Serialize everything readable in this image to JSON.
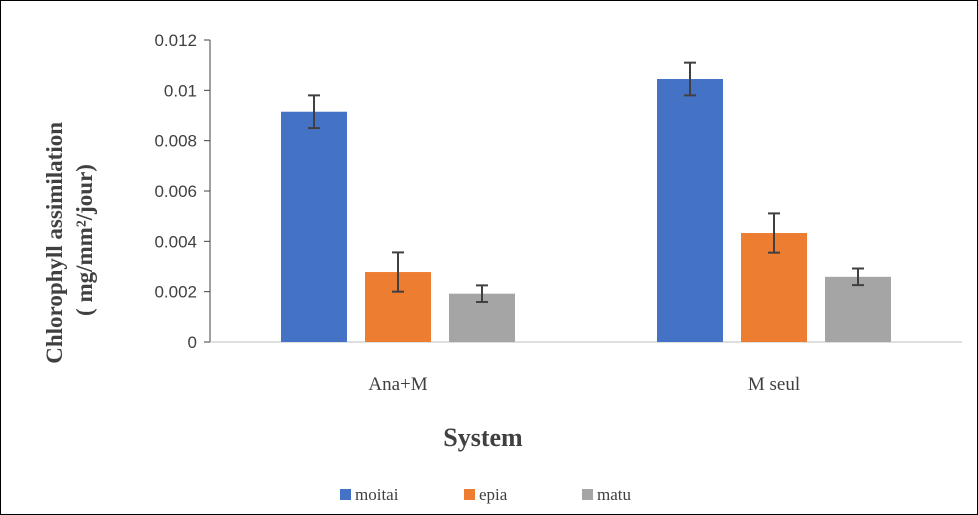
{
  "chart_data": {
    "type": "bar",
    "categories": [
      "Ana+M",
      "M seul"
    ],
    "series": [
      {
        "name": "moitai",
        "color": "#4472C4",
        "values": [
          0.00915,
          0.01045
        ],
        "errors": [
          0.00065,
          0.00065
        ]
      },
      {
        "name": "epia",
        "color": "#ED7D31",
        "values": [
          0.00278,
          0.00433
        ],
        "errors": [
          0.00078,
          0.00078
        ]
      },
      {
        "name": "matu",
        "color": "#A5A5A5",
        "values": [
          0.00192,
          0.00259
        ],
        "errors": [
          0.00033,
          0.00033
        ]
      }
    ],
    "ylim": [
      0,
      0.012
    ],
    "yticks": [
      "0",
      "0.002",
      "0.004",
      "0.006",
      "0.008",
      "0.01",
      "0.012"
    ],
    "ylabel_line1": "Chlorophyll assimilation",
    "ylabel_line2": "( mg/mm²/jour)",
    "xlabel": "System",
    "legend_position": "bottom",
    "grid": false
  }
}
